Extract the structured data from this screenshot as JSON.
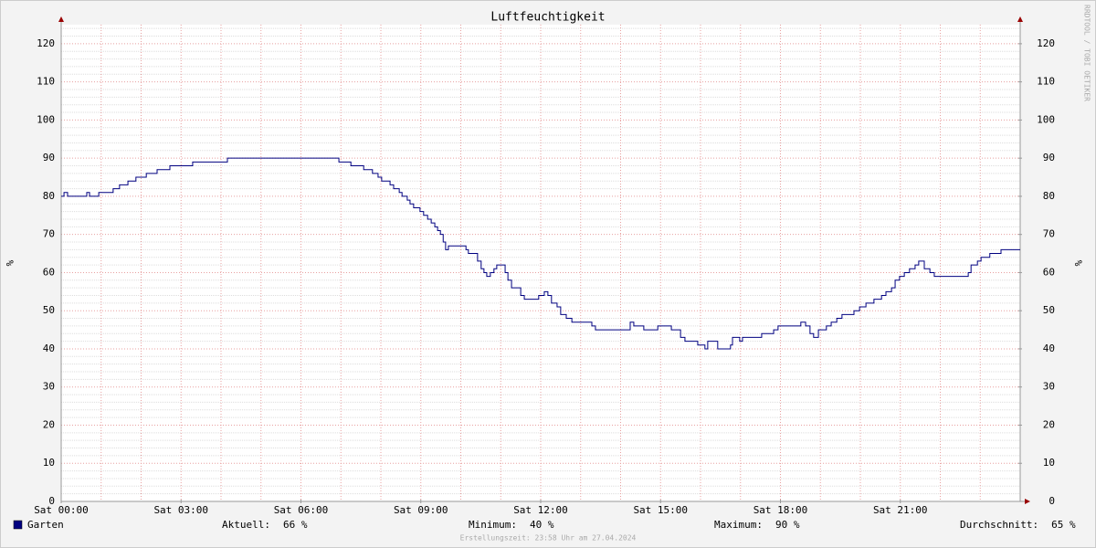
{
  "chart_data": {
    "type": "line",
    "title": "Luftfeuchtigkeit",
    "ylabel": "%",
    "y2label": "%",
    "watermark": "RRDTOOL / TOBI OETIKER",
    "footer": "Erstellungszeit: 23:58 Uhr am 27.04.2024",
    "xlim": [
      0,
      24
    ],
    "xticks": [
      {
        "value": 0,
        "label": "Sat 00:00"
      },
      {
        "value": 3,
        "label": "Sat 03:00"
      },
      {
        "value": 6,
        "label": "Sat 06:00"
      },
      {
        "value": 9,
        "label": "Sat 09:00"
      },
      {
        "value": 12,
        "label": "Sat 12:00"
      },
      {
        "value": 15,
        "label": "Sat 15:00"
      },
      {
        "value": 18,
        "label": "Sat 18:00"
      },
      {
        "value": 21,
        "label": "Sat 21:00"
      }
    ],
    "xgrid": [
      1,
      2,
      3,
      4,
      5,
      6,
      7,
      8,
      9,
      10,
      11,
      12,
      13,
      14,
      15,
      16,
      17,
      18,
      19,
      20,
      21,
      22,
      23
    ],
    "ylim": [
      0,
      125
    ],
    "yticks": [
      0,
      10,
      20,
      30,
      40,
      50,
      60,
      70,
      80,
      90,
      100,
      110,
      120
    ],
    "y2ticks": [
      0,
      10,
      20,
      30,
      40,
      50,
      60,
      70,
      80,
      90,
      100,
      110,
      120
    ],
    "yminor": [
      2,
      4,
      6,
      8,
      12,
      14,
      16,
      18,
      22,
      24,
      26,
      28,
      32,
      34,
      36,
      38,
      42,
      44,
      46,
      48,
      52,
      54,
      56,
      58,
      62,
      64,
      66,
      68,
      72,
      74,
      76,
      78,
      82,
      84,
      86,
      88,
      92,
      94,
      96,
      98,
      102,
      104,
      106,
      108,
      112,
      114,
      116,
      118,
      122,
      124
    ],
    "grid": true,
    "x": [
      0,
      0.07,
      0.16,
      0.59,
      0.64,
      0.71,
      0.89,
      0.94,
      1.26,
      1.3,
      1.46,
      1.67,
      1.87,
      2.13,
      2.4,
      2.72,
      3.29,
      4.16,
      6.9,
      6.95,
      7.25,
      7.57,
      7.79,
      7.93,
      8.02,
      8.23,
      8.32,
      8.46,
      8.53,
      8.66,
      8.73,
      8.82,
      8.98,
      9.07,
      9.17,
      9.26,
      9.35,
      9.42,
      9.49,
      9.56,
      9.62,
      9.69,
      10.03,
      10.13,
      10.19,
      10.35,
      10.42,
      10.51,
      10.58,
      10.65,
      10.74,
      10.83,
      10.9,
      11.04,
      11.11,
      11.18,
      11.27,
      11.38,
      11.5,
      11.59,
      11.82,
      11.95,
      12.09,
      12.18,
      12.27,
      12.41,
      12.5,
      12.64,
      12.78,
      12.87,
      13.17,
      13.28,
      13.37,
      14.13,
      14.24,
      14.33,
      14.47,
      14.58,
      14.79,
      14.93,
      15.15,
      15.27,
      15.5,
      15.61,
      15.75,
      15.93,
      16.11,
      16.18,
      16.3,
      16.43,
      16.64,
      16.75,
      16.8,
      16.89,
      16.98,
      17.05,
      17.44,
      17.53,
      17.83,
      17.94,
      18.45,
      18.51,
      18.63,
      18.74,
      18.83,
      18.95,
      19.15,
      19.27,
      19.41,
      19.54,
      19.84,
      19.98,
      20.14,
      20.34,
      20.53,
      20.64,
      20.78,
      20.87,
      20.98,
      21.1,
      21.23,
      21.37,
      21.46,
      21.6,
      21.74,
      21.85,
      22.58,
      22.7,
      22.77,
      22.93,
      23.02,
      23.15,
      23.24,
      23.38,
      23.52,
      24
    ],
    "series": [
      {
        "name": "Garten",
        "color": "#000080",
        "values": [
          80,
          81,
          80,
          80,
          81,
          80,
          80,
          81,
          81,
          82,
          83,
          84,
          85,
          86,
          87,
          88,
          89,
          90,
          90,
          89,
          88,
          87,
          86,
          85,
          84,
          83,
          82,
          81,
          80,
          79,
          78,
          77,
          76,
          75,
          74,
          73,
          72,
          71,
          70,
          68,
          66,
          67,
          67,
          66,
          65,
          65,
          63,
          61,
          60,
          59,
          60,
          61,
          62,
          62,
          60,
          58,
          56,
          56,
          54,
          53,
          53,
          54,
          55,
          54,
          52,
          51,
          49,
          48,
          47,
          47,
          47,
          46,
          45,
          45,
          47,
          46,
          46,
          45,
          45,
          46,
          46,
          45,
          43,
          42,
          42,
          41,
          40,
          42,
          42,
          40,
          40,
          41,
          43,
          43,
          42,
          43,
          43,
          44,
          45,
          46,
          46,
          47,
          46,
          44,
          43,
          45,
          46,
          47,
          48,
          49,
          50,
          51,
          52,
          53,
          54,
          55,
          56,
          58,
          59,
          60,
          61,
          62,
          63,
          61,
          60,
          59,
          59,
          60,
          62,
          63,
          64,
          64,
          65,
          65,
          66,
          66
        ]
      }
    ],
    "stats": [
      {
        "label": "Aktuell:",
        "value": "66 %"
      },
      {
        "label": "Minimum:",
        "value": "40 %"
      },
      {
        "label": "Maximum:",
        "value": "90 %"
      },
      {
        "label": "Durchschnitt:",
        "value": "65 %"
      }
    ]
  }
}
